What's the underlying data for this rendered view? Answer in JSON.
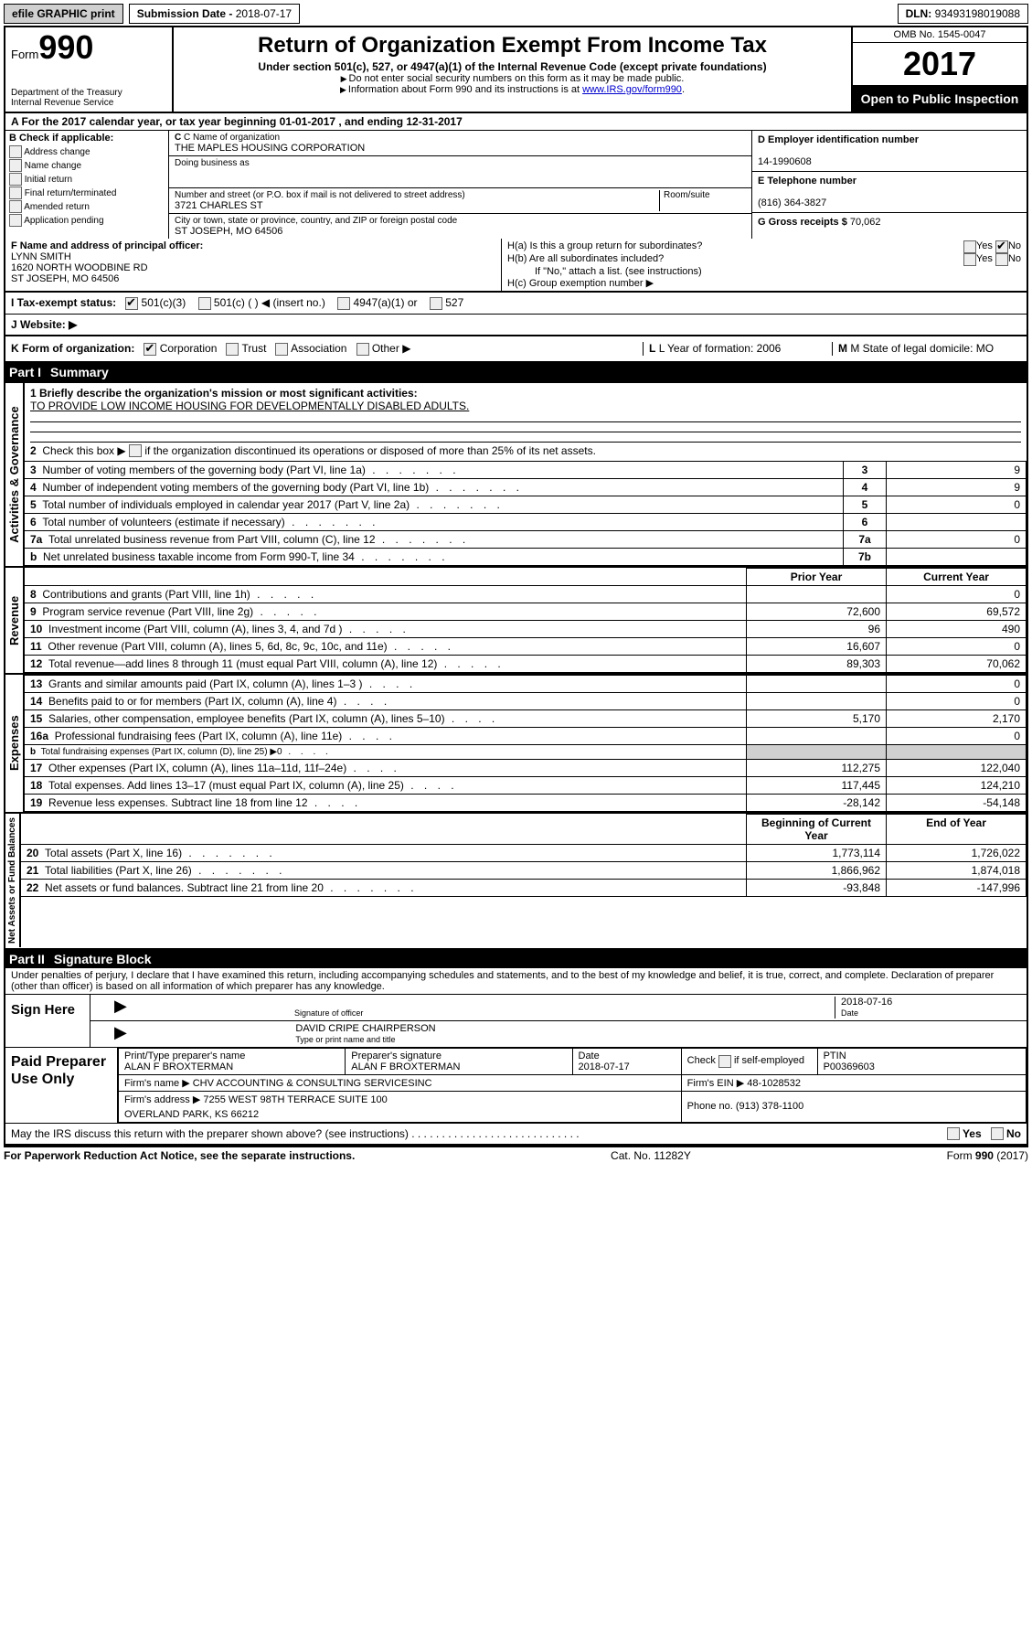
{
  "top": {
    "efile": "efile GRAPHIC print",
    "sub_label": "Submission Date - ",
    "sub_date": "2018-07-17",
    "dln_label": "DLN: ",
    "dln": "93493198019088"
  },
  "head": {
    "form_word": "Form",
    "form_num": "990",
    "dept1": "Department of the Treasury",
    "dept2": "Internal Revenue Service",
    "title": "Return of Organization Exempt From Income Tax",
    "sub": "Under section 501(c), 527, or 4947(a)(1) of the Internal Revenue Code (except private foundations)",
    "arrow1": "Do not enter social security numbers on this form as it may be made public.",
    "arrow2_a": "Information about Form 990 and its instructions is at ",
    "arrow2_link": "www.IRS.gov/form990",
    "omb": "OMB No. 1545-0047",
    "year": "2017",
    "inspect": "Open to Public Inspection"
  },
  "rowA": "A  For the 2017 calendar year, or tax year beginning 01-01-2017   , and ending 12-31-2017",
  "B": {
    "hdr": "B Check if applicable:",
    "opts": [
      "Address change",
      "Name change",
      "Initial return",
      "Final return/terminated",
      "Amended return",
      "Application pending"
    ]
  },
  "C": {
    "name_lab": "C Name of organization",
    "name": "THE MAPLES HOUSING CORPORATION",
    "dba_lab": "Doing business as",
    "dba": "",
    "addr_lab": "Number and street (or P.O. box if mail is not delivered to street address)",
    "room_lab": "Room/suite",
    "addr": "3721 CHARLES ST",
    "city_lab": "City or town, state or province, country, and ZIP or foreign postal code",
    "city": "ST JOSEPH, MO  64506"
  },
  "D": {
    "lab": "D Employer identification number",
    "val": "14-1990608"
  },
  "E": {
    "lab": "E Telephone number",
    "val": "(816) 364-3827"
  },
  "G": {
    "lab": "G Gross receipts $ ",
    "val": "70,062"
  },
  "F": {
    "lab": "F  Name and address of principal officer:",
    "name": "LYNN SMITH",
    "addr1": "1620 NORTH WOODBINE RD",
    "addr2": "ST JOSEPH, MO  64506"
  },
  "H": {
    "a": "H(a)  Is this a group return for subordinates?",
    "b": "H(b)  Are all subordinates included?",
    "b_note": "If \"No,\" attach a list. (see instructions)",
    "c": "H(c)  Group exemption number ▶",
    "yes": "Yes",
    "no": "No"
  },
  "I": {
    "lab": "I  Tax-exempt status:",
    "o1": "501(c)(3)",
    "o2": "501(c) ( ) ◀ (insert no.)",
    "o3": "4947(a)(1) or",
    "o4": "527"
  },
  "J": "J  Website: ▶",
  "K": {
    "lab": "K Form of organization:",
    "o1": "Corporation",
    "o2": "Trust",
    "o3": "Association",
    "o4": "Other ▶",
    "L": "L Year of formation: 2006",
    "M": "M State of legal domicile: MO"
  },
  "part1": {
    "num": "Part I",
    "title": "Summary"
  },
  "gov": {
    "l1": "1  Briefly describe the organization's mission or most significant activities:",
    "mission": "TO PROVIDE LOW INCOME HOUSING FOR DEVELOPMENTALLY DISABLED ADULTS.",
    "l2": "2  Check this box ▶       if the organization discontinued its operations or disposed of more than 25% of its net assets.",
    "rows": [
      {
        "n": "3",
        "t": "Number of voting members of the governing body (Part VI, line 1a)",
        "box": "3",
        "v": "9"
      },
      {
        "n": "4",
        "t": "Number of independent voting members of the governing body (Part VI, line 1b)",
        "box": "4",
        "v": "9"
      },
      {
        "n": "5",
        "t": "Total number of individuals employed in calendar year 2017 (Part V, line 2a)",
        "box": "5",
        "v": "0"
      },
      {
        "n": "6",
        "t": "Total number of volunteers (estimate if necessary)",
        "box": "6",
        "v": ""
      },
      {
        "n": "7a",
        "t": "Total unrelated business revenue from Part VIII, column (C), line 12",
        "box": "7a",
        "v": "0"
      },
      {
        "n": "b",
        "t": "Net unrelated business taxable income from Form 990-T, line 34",
        "box": "7b",
        "v": ""
      }
    ],
    "tab": "Activities & Governance"
  },
  "rev": {
    "tab": "Revenue",
    "hdr_py": "Prior Year",
    "hdr_cy": "Current Year",
    "rows": [
      {
        "n": "8",
        "t": "Contributions and grants (Part VIII, line 1h)",
        "py": "",
        "cy": "0"
      },
      {
        "n": "9",
        "t": "Program service revenue (Part VIII, line 2g)",
        "py": "72,600",
        "cy": "69,572"
      },
      {
        "n": "10",
        "t": "Investment income (Part VIII, column (A), lines 3, 4, and 7d )",
        "py": "96",
        "cy": "490"
      },
      {
        "n": "11",
        "t": "Other revenue (Part VIII, column (A), lines 5, 6d, 8c, 9c, 10c, and 11e)",
        "py": "16,607",
        "cy": "0"
      },
      {
        "n": "12",
        "t": "Total revenue—add lines 8 through 11 (must equal Part VIII, column (A), line 12)",
        "py": "89,303",
        "cy": "70,062"
      }
    ]
  },
  "exp": {
    "tab": "Expenses",
    "rows": [
      {
        "n": "13",
        "t": "Grants and similar amounts paid (Part IX, column (A), lines 1–3 )",
        "py": "",
        "cy": "0"
      },
      {
        "n": "14",
        "t": "Benefits paid to or for members (Part IX, column (A), line 4)",
        "py": "",
        "cy": "0"
      },
      {
        "n": "15",
        "t": "Salaries, other compensation, employee benefits (Part IX, column (A), lines 5–10)",
        "py": "5,170",
        "cy": "2,170"
      },
      {
        "n": "16a",
        "t": "Professional fundraising fees (Part IX, column (A), line 11e)",
        "py": "",
        "cy": "0"
      },
      {
        "n": "b",
        "t": "Total fundraising expenses (Part IX, column (D), line 25) ▶0",
        "py": "grey",
        "cy": "grey"
      },
      {
        "n": "17",
        "t": "Other expenses (Part IX, column (A), lines 11a–11d, 11f–24e)",
        "py": "112,275",
        "cy": "122,040"
      },
      {
        "n": "18",
        "t": "Total expenses. Add lines 13–17 (must equal Part IX, column (A), line 25)",
        "py": "117,445",
        "cy": "124,210"
      },
      {
        "n": "19",
        "t": "Revenue less expenses. Subtract line 18 from line 12",
        "py": "-28,142",
        "cy": "-54,148"
      }
    ]
  },
  "net": {
    "tab": "Net Assets or Fund Balances",
    "hdr_b": "Beginning of Current Year",
    "hdr_e": "End of Year",
    "rows": [
      {
        "n": "20",
        "t": "Total assets (Part X, line 16)",
        "py": "1,773,114",
        "cy": "1,726,022"
      },
      {
        "n": "21",
        "t": "Total liabilities (Part X, line 26)",
        "py": "1,866,962",
        "cy": "1,874,018"
      },
      {
        "n": "22",
        "t": "Net assets or fund balances. Subtract line 21 from line 20",
        "py": "-93,848",
        "cy": "-147,996"
      }
    ]
  },
  "part2": {
    "num": "Part II",
    "title": "Signature Block"
  },
  "sig": {
    "text": "Under penalties of perjury, I declare that I have examined this return, including accompanying schedules and statements, and to the best of my knowledge and belief, it is true, correct, and complete. Declaration of preparer (other than officer) is based on all information of which preparer has any knowledge.",
    "here": "Sign Here",
    "sig_of_officer": "Signature of officer",
    "date": "2018-07-16",
    "date_lab": "Date",
    "name": "DAVID CRIPE CHAIRPERSON",
    "name_lab": "Type or print name and title"
  },
  "paid": {
    "lbl": "Paid Preparer Use Only",
    "r1": {
      "c1l": "Print/Type preparer's name",
      "c1": "ALAN F BROXTERMAN",
      "c2l": "Preparer's signature",
      "c2": "ALAN F BROXTERMAN",
      "c3l": "Date",
      "c3": "2018-07-17",
      "c4": "Check        if self-employed",
      "c5l": "PTIN",
      "c5": "P00369603"
    },
    "r2": {
      "c1": "Firm's name    ▶ CHV ACCOUNTING & CONSULTING SERVICESINC",
      "c2": "Firm's EIN ▶ 48-1028532"
    },
    "r3": {
      "c1": "Firm's address ▶ 7255 WEST 98TH TERRACE SUITE 100",
      "c2": "Phone no. (913) 378-1100"
    },
    "r4": "                                    OVERLAND PARK, KS  66212"
  },
  "discuss": {
    "q": "May the IRS discuss this return with the preparer shown above? (see instructions)",
    "yes": "Yes",
    "no": "No"
  },
  "footer": {
    "l": "For Paperwork Reduction Act Notice, see the separate instructions.",
    "c": "Cat. No. 11282Y",
    "r": "Form 990 (2017)"
  }
}
